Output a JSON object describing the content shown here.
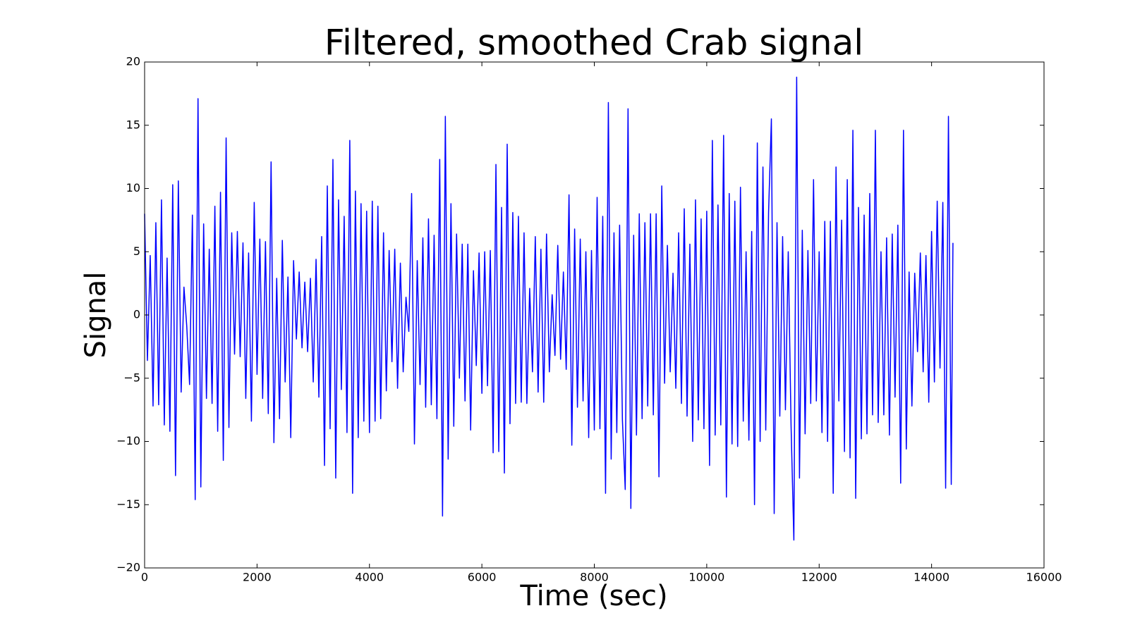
{
  "chart_data": {
    "type": "line",
    "title": "Filtered, smoothed Crab signal",
    "xlabel": "Time (sec)",
    "ylabel": "Signal",
    "color": "#0000ff",
    "x": [
      0,
      50,
      100,
      150,
      200,
      250,
      300,
      350,
      400,
      450,
      500,
      550,
      600,
      650,
      700,
      750,
      800,
      850,
      900,
      950,
      1000,
      1050,
      1100,
      1150,
      1200,
      1250,
      1300,
      1350,
      1400,
      1450,
      1500,
      1550,
      1600,
      1650,
      1700,
      1750,
      1800,
      1850,
      1900,
      1950,
      2000,
      2050,
      2100,
      2150,
      2200,
      2250,
      2300,
      2350,
      2400,
      2450,
      2500,
      2550,
      2600,
      2650,
      2700,
      2750,
      2800,
      2850,
      2900,
      2950,
      3000,
      3050,
      3100,
      3150,
      3200,
      3250,
      3300,
      3350,
      3400,
      3450,
      3500,
      3550,
      3600,
      3650,
      3700,
      3750,
      3800,
      3850,
      3900,
      3950,
      4000,
      4050,
      4100,
      4150,
      4200,
      4250,
      4300,
      4350,
      4400,
      4450,
      4500,
      4550,
      4600,
      4650,
      4700,
      4750,
      4800,
      4850,
      4900,
      4950,
      5000,
      5050,
      5100,
      5150,
      5200,
      5250,
      5300,
      5350,
      5400,
      5450,
      5500,
      5550,
      5600,
      5650,
      5700,
      5750,
      5800,
      5850,
      5900,
      5950,
      6000,
      6050,
      6100,
      6150,
      6200,
      6250,
      6300,
      6350,
      6400,
      6450,
      6500,
      6550,
      6600,
      6650,
      6700,
      6750,
      6800,
      6850,
      6900,
      6950,
      7000,
      7050,
      7100,
      7150,
      7200,
      7250,
      7300,
      7350,
      7400,
      7450,
      7500,
      7550,
      7600,
      7650,
      7700,
      7750,
      7800,
      7850,
      7900,
      7950,
      8000,
      8050,
      8100,
      8150,
      8200,
      8250,
      8300,
      8350,
      8400,
      8450,
      8500,
      8550,
      8600,
      8650,
      8700,
      8750,
      8800,
      8850,
      8900,
      8950,
      9000,
      9050,
      9100,
      9150,
      9200,
      9250,
      9300,
      9350,
      9400,
      9450,
      9500,
      9550,
      9600,
      9650,
      9700,
      9750,
      9800,
      9850,
      9900,
      9950,
      10000,
      10050,
      10100,
      10150,
      10200,
      10250,
      10300,
      10350,
      10400,
      10450,
      10500,
      10550,
      10600,
      10650,
      10700,
      10750,
      10800,
      10850,
      10900,
      10950,
      11000,
      11050,
      11100,
      11150,
      11200,
      11250,
      11300,
      11350,
      11400,
      11450,
      11500,
      11550,
      11600,
      11650,
      11700,
      11750,
      11800,
      11850,
      11900,
      11950,
      12000,
      12050,
      12100,
      12150,
      12200,
      12250,
      12300,
      12350,
      12400,
      12450,
      12500,
      12550,
      12600,
      12650,
      12700,
      12750,
      12800,
      12850,
      12900,
      12950,
      13000,
      13050,
      13100,
      13150,
      13200,
      13250,
      13300,
      13350,
      13400,
      13450,
      13500,
      13550,
      13600,
      13650,
      13700,
      13750,
      13800,
      13850,
      13900,
      13950,
      14000,
      14050,
      14100,
      14150,
      14200,
      14250,
      14300,
      14350,
      14380
    ],
    "values": [
      8,
      -3.6,
      4.7,
      -7.2,
      7.3,
      -7.1,
      9.1,
      -8.7,
      4.5,
      -9.2,
      10.3,
      -12.7,
      10.6,
      -6.1,
      2.2,
      -0.9,
      -5.5,
      7.9,
      -14.6,
      17.1,
      -13.6,
      7.2,
      -6.6,
      5.2,
      -7.0,
      8.6,
      -9.2,
      9.7,
      -11.5,
      14.0,
      -8.9,
      6.5,
      -3.1,
      6.6,
      -3.3,
      5.7,
      -6.6,
      4.9,
      -8.4,
      8.9,
      -4.7,
      6.0,
      -6.6,
      5.8,
      -7.8,
      12.1,
      -10.1,
      2.9,
      -8.2,
      5.9,
      -5.3,
      3.0,
      -9.7,
      4.3,
      -1.9,
      3.4,
      -2.6,
      2.6,
      -2.9,
      2.9,
      -5.3,
      4.4,
      -6.5,
      6.2,
      -11.9,
      10.2,
      -9.0,
      12.3,
      -12.9,
      9.1,
      -5.9,
      7.8,
      -9.3,
      13.8,
      -14.1,
      9.8,
      -9.7,
      8.8,
      -8.4,
      8.2,
      -9.3,
      9.0,
      -8.4,
      8.6,
      -8.2,
      6.5,
      -6.0,
      5.1,
      -3.7,
      5.2,
      -5.8,
      4.1,
      -4.5,
      1.4,
      -1.3,
      9.6,
      -10.2,
      4.3,
      -5.5,
      6.1,
      -7.3,
      7.6,
      -7.1,
      6.3,
      -8.2,
      12.3,
      -15.9,
      15.7,
      -11.4,
      8.8,
      -8.8,
      6.4,
      -5.0,
      5.6,
      -6.8,
      5.6,
      -9.1,
      3.5,
      -4.0,
      4.9,
      -6.2,
      5.0,
      -5.6,
      5.1,
      -10.9,
      11.9,
      -10.8,
      8.5,
      -12.5,
      13.5,
      -8.6,
      8.1,
      -7.0,
      7.8,
      -6.9,
      6.5,
      -7.0,
      2.1,
      -4.5,
      6.2,
      -6.1,
      5.2,
      -6.9,
      6.4,
      -4.5,
      1.6,
      -3.2,
      5.5,
      -3.5,
      3.4,
      -4.3,
      9.5,
      -10.3,
      6.8,
      -7.3,
      6.0,
      -6.8,
      5.0,
      -9.7,
      5.1,
      -9.1,
      9.3,
      -9.0,
      7.8,
      -14.1,
      16.8,
      -11.4,
      6.5,
      -9.3,
      7.1,
      -8.3,
      -13.8,
      16.3,
      -15.3,
      6.3,
      -9.5,
      8.0,
      -8.2,
      7.3,
      -7.2,
      8.0,
      -7.9,
      8.0,
      -12.8,
      10.2,
      -5.4,
      5.5,
      -4.5,
      3.3,
      -5.8,
      6.5,
      -7.0,
      8.4,
      -8.0,
      5.6,
      -10.0,
      9.1,
      -8.3,
      7.6,
      -9.0,
      8.2,
      -11.9,
      13.8,
      -9.5,
      8.7,
      -8.7,
      14.2,
      -14.4,
      9.6,
      -10.2,
      9.0,
      -10.4,
      10.1,
      -8.4,
      5.0,
      -9.9,
      6.6,
      -15.0,
      13.6,
      -10.0,
      11.7,
      -9.1,
      8.1,
      15.5,
      -15.7,
      7.3,
      -8.0,
      6.2,
      -7.5,
      5.0,
      -8.7,
      -17.8,
      18.8,
      -12.9,
      6.7,
      -9.4,
      5.1,
      -7.0,
      10.7,
      -6.8,
      5.0,
      -9.3,
      7.4,
      -10.0,
      7.4,
      -14.1,
      11.7,
      -6.8,
      7.5,
      -10.8,
      10.7,
      -11.3,
      14.6,
      -14.5,
      8.5,
      -9.8,
      7.9,
      -9.4,
      9.6,
      -7.9,
      14.6,
      -8.5,
      5.0,
      -7.9,
      6.1,
      -9.5,
      6.4,
      -6.5,
      7.1,
      -13.3,
      14.6,
      -10.6,
      3.4,
      -7.2,
      3.3,
      -2.9,
      4.9,
      -4.5,
      4.7,
      -6.9,
      6.6,
      -5.3,
      9.0,
      -4.2,
      8.9,
      -13.7,
      15.7,
      -13.4,
      5.7
    ],
    "xlim": [
      0,
      16000
    ],
    "xticks": [
      0,
      2000,
      4000,
      6000,
      8000,
      10000,
      12000,
      14000,
      16000
    ],
    "ylim": [
      -20,
      20
    ],
    "yticks": [
      {
        "value": -20,
        "label": "−20"
      },
      {
        "value": -15,
        "label": "−15"
      },
      {
        "value": -10,
        "label": "−10"
      },
      {
        "value": -5,
        "label": "−5"
      },
      0,
      5,
      10,
      15,
      20
    ]
  }
}
